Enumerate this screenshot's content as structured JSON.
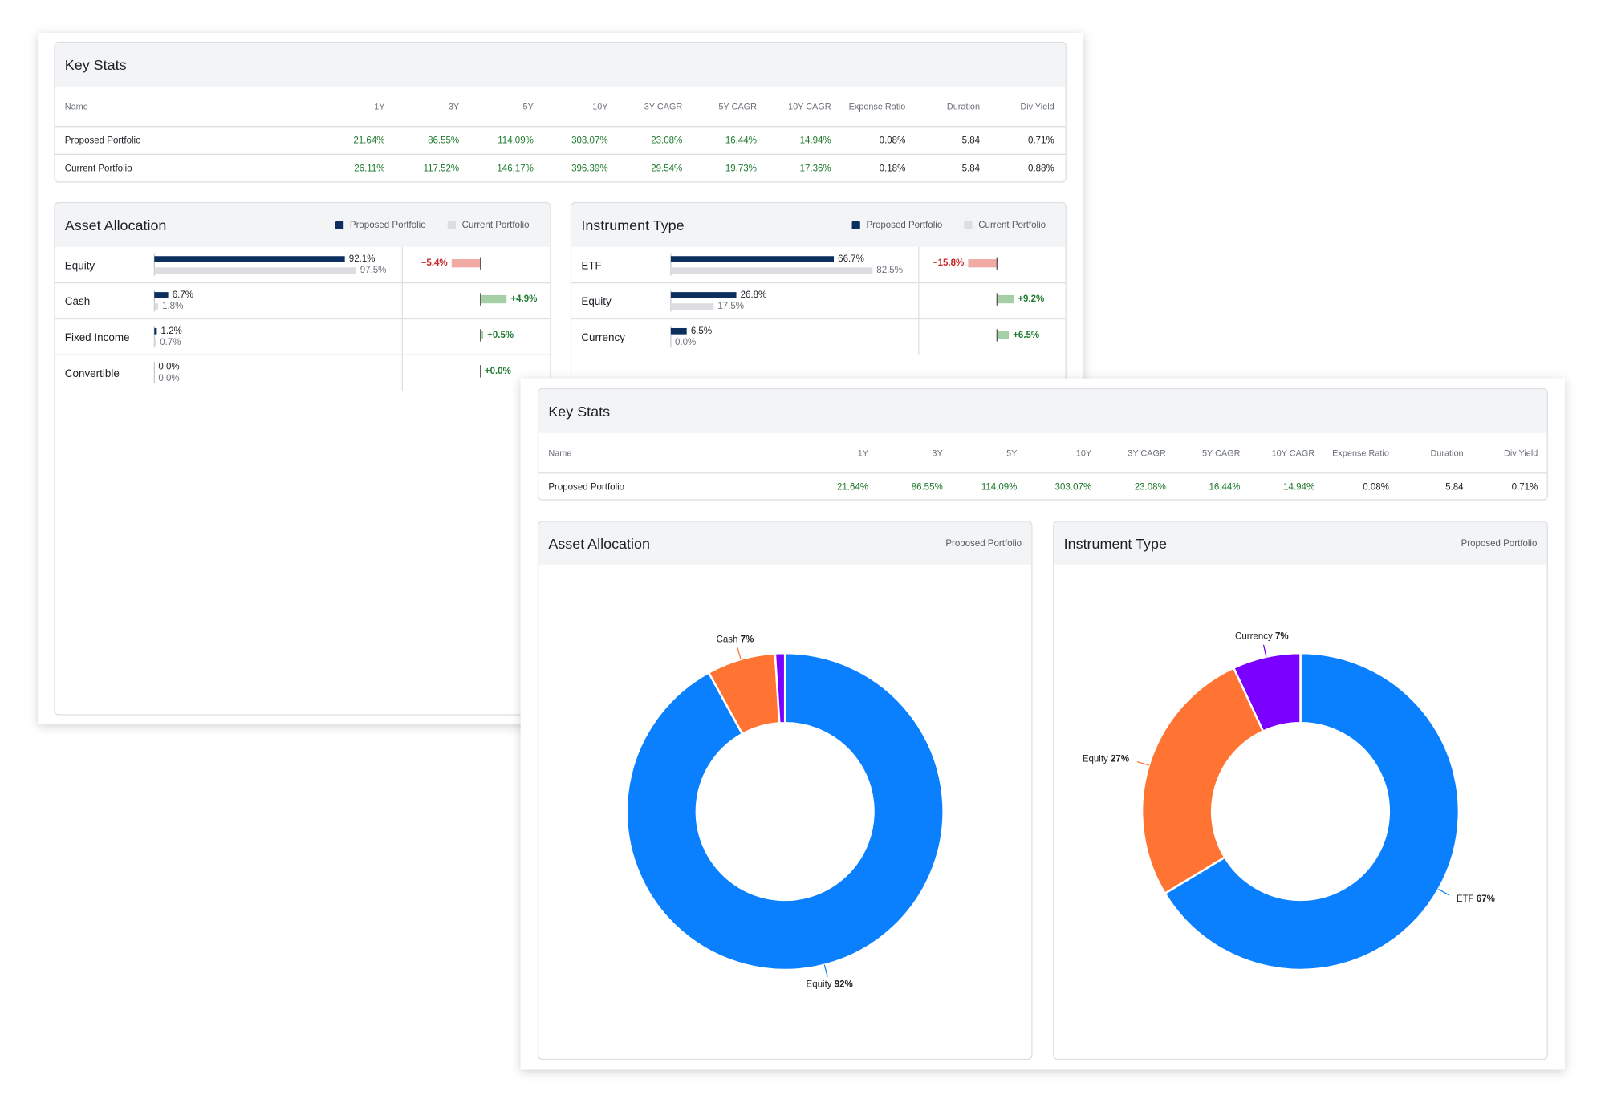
{
  "back": {
    "key_stats": {
      "title": "Key Stats",
      "columns": [
        "Name",
        "1Y",
        "3Y",
        "5Y",
        "10Y",
        "3Y CAGR",
        "5Y CAGR",
        "10Y CAGR",
        "Expense Ratio",
        "Duration",
        "Div Yield"
      ],
      "rows": [
        [
          "Proposed Portfolio",
          "21.64%",
          "86.55%",
          "114.09%",
          "303.07%",
          "23.08%",
          "16.44%",
          "14.94%",
          "0.08%",
          "5.84",
          "0.71%"
        ],
        [
          "Current Portfolio",
          "26.11%",
          "117.52%",
          "146.17%",
          "396.39%",
          "29.54%",
          "19.73%",
          "17.36%",
          "0.18%",
          "5.84",
          "0.88%"
        ]
      ]
    },
    "charts": [
      {
        "type": "bar",
        "title": "Asset Allocation",
        "categories": [
          "Equity",
          "Cash",
          "Fixed Income",
          "Convertible"
        ],
        "series": [
          {
            "name": "Proposed Portfolio",
            "color": "#0d2f5f",
            "values": [
              92.1,
              6.7,
              1.2,
              0.0
            ],
            "value_labels": [
              "92.1%",
              "6.7%",
              "1.2%",
              "0.0%"
            ]
          },
          {
            "name": "Current Portfolio",
            "color": "#dcdde0",
            "values": [
              97.5,
              1.8,
              0.7,
              0.0
            ],
            "value_labels": [
              "97.5%",
              "1.8%",
              "0.7%",
              "0.0%"
            ]
          }
        ],
        "change": {
          "values": [
            -5.4,
            4.9,
            0.5,
            0.0
          ],
          "value_labels": [
            "−5.4%",
            "+4.9%",
            "+0.5%",
            "+0.0%"
          ],
          "positive_color": "#a6cfa6",
          "negative_color": "#f0a9a3"
        }
      },
      {
        "type": "bar",
        "title": "Instrument Type",
        "categories": [
          "ETF",
          "Equity",
          "Currency"
        ],
        "series": [
          {
            "name": "Proposed Portfolio",
            "color": "#0d2f5f",
            "values": [
              66.7,
              26.8,
              6.5
            ],
            "value_labels": [
              "66.7%",
              "26.8%",
              "6.5%"
            ]
          },
          {
            "name": "Current Portfolio",
            "color": "#dcdde0",
            "values": [
              82.5,
              17.5,
              0.0
            ],
            "value_labels": [
              "82.5%",
              "17.5%",
              "0.0%"
            ]
          }
        ],
        "change": {
          "values": [
            -15.8,
            9.2,
            6.5
          ],
          "value_labels": [
            "−15.8%",
            "+9.2%",
            "+6.5%"
          ],
          "positive_color": "#a6cfa6",
          "negative_color": "#f0a9a3"
        }
      }
    ]
  },
  "front": {
    "key_stats": {
      "title": "Key Stats",
      "columns": [
        "Name",
        "1Y",
        "3Y",
        "5Y",
        "10Y",
        "3Y CAGR",
        "5Y CAGR",
        "10Y CAGR",
        "Expense Ratio",
        "Duration",
        "Div Yield"
      ],
      "rows": [
        [
          "Proposed Portfolio",
          "21.64%",
          "86.55%",
          "114.09%",
          "303.07%",
          "23.08%",
          "16.44%",
          "14.94%",
          "0.08%",
          "5.84",
          "0.71%"
        ]
      ]
    },
    "charts": [
      {
        "type": "pie",
        "title": "Asset Allocation",
        "legend": "Proposed Portfolio",
        "categories": [
          "Equity",
          "Cash",
          null
        ],
        "values": [
          92,
          7,
          1
        ],
        "value_labels": [
          "92%",
          "7%",
          null
        ],
        "colors": [
          "#0a80ff",
          "#ff7433",
          "#7a00ff"
        ]
      },
      {
        "type": "pie",
        "title": "Instrument Type",
        "legend": "Proposed Portfolio",
        "categories": [
          "ETF",
          "Equity",
          "Currency"
        ],
        "values": [
          67,
          27,
          7
        ],
        "value_labels": [
          "67%",
          "27%",
          "7%"
        ],
        "colors": [
          "#0a80ff",
          "#ff7433",
          "#7a00ff"
        ]
      }
    ]
  }
}
